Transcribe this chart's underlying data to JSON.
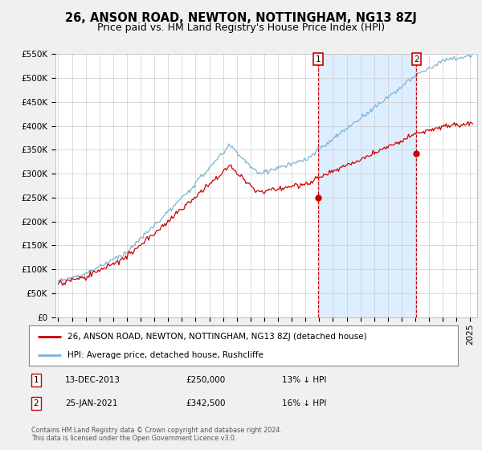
{
  "title": "26, ANSON ROAD, NEWTON, NOTTINGHAM, NG13 8ZJ",
  "subtitle": "Price paid vs. HM Land Registry's House Price Index (HPI)",
  "legend_line1": "26, ANSON ROAD, NEWTON, NOTTINGHAM, NG13 8ZJ (detached house)",
  "legend_line2": "HPI: Average price, detached house, Rushcliffe",
  "annotation1_date": "13-DEC-2013",
  "annotation1_price": "£250,000",
  "annotation1_pct": "13% ↓ HPI",
  "annotation2_date": "25-JAN-2021",
  "annotation2_price": "£342,500",
  "annotation2_pct": "16% ↓ HPI",
  "footnote": "Contains HM Land Registry data © Crown copyright and database right 2024.\nThis data is licensed under the Open Government Licence v3.0.",
  "hpi_color": "#7ab4d8",
  "price_color": "#cc0000",
  "background_color": "#f0f0f0",
  "plot_background": "#ffffff",
  "shade_color": "#ddeeff",
  "ylim": [
    0,
    550000
  ],
  "yticks": [
    0,
    50000,
    100000,
    150000,
    200000,
    250000,
    300000,
    350000,
    400000,
    450000,
    500000,
    550000
  ],
  "grid_color": "#cccccc",
  "title_fontsize": 10.5,
  "subtitle_fontsize": 9,
  "tick_fontsize": 7.5,
  "sale1_year": 2013.958,
  "sale1_price": 250000,
  "sale2_year": 2021.07,
  "sale2_price": 342500,
  "xlim_start": 1994.8,
  "xlim_end": 2025.5
}
